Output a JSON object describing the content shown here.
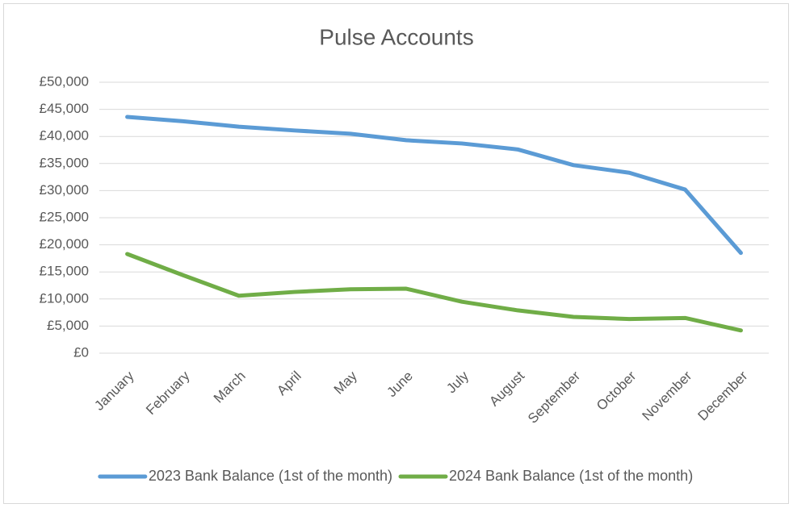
{
  "chart_data": {
    "type": "line",
    "title": "Pulse Accounts",
    "categories": [
      "January",
      "February",
      "March",
      "April",
      "May",
      "June",
      "July",
      "August",
      "September",
      "October",
      "November",
      "December"
    ],
    "series": [
      {
        "name": "2023 Bank Balance (1st of the month)",
        "color": "#5b9bd5",
        "values": [
          43600,
          42800,
          41800,
          41100,
          40500,
          39300,
          38700,
          37600,
          34700,
          33300,
          30200,
          18500
        ]
      },
      {
        "name": "2024 Bank Balance (1st of the month)",
        "color": "#70ad47",
        "values": [
          18300,
          14400,
          10600,
          11300,
          11800,
          11900,
          9500,
          7900,
          6700,
          6300,
          6500,
          4200
        ]
      }
    ],
    "ylim": [
      0,
      50000
    ],
    "yticks": [
      {
        "value": 0,
        "label": "£0"
      },
      {
        "value": 5000,
        "label": "£5,000"
      },
      {
        "value": 10000,
        "label": "£10,000"
      },
      {
        "value": 15000,
        "label": "£15,000"
      },
      {
        "value": 20000,
        "label": "£20,000"
      },
      {
        "value": 25000,
        "label": "£25,000"
      },
      {
        "value": 30000,
        "label": "£30,000"
      },
      {
        "value": 35000,
        "label": "£35,000"
      },
      {
        "value": 40000,
        "label": "£40,000"
      },
      {
        "value": 45000,
        "label": "£45,000"
      },
      {
        "value": 50000,
        "label": "£50,000"
      }
    ],
    "grid": true,
    "legend": "bottom"
  }
}
